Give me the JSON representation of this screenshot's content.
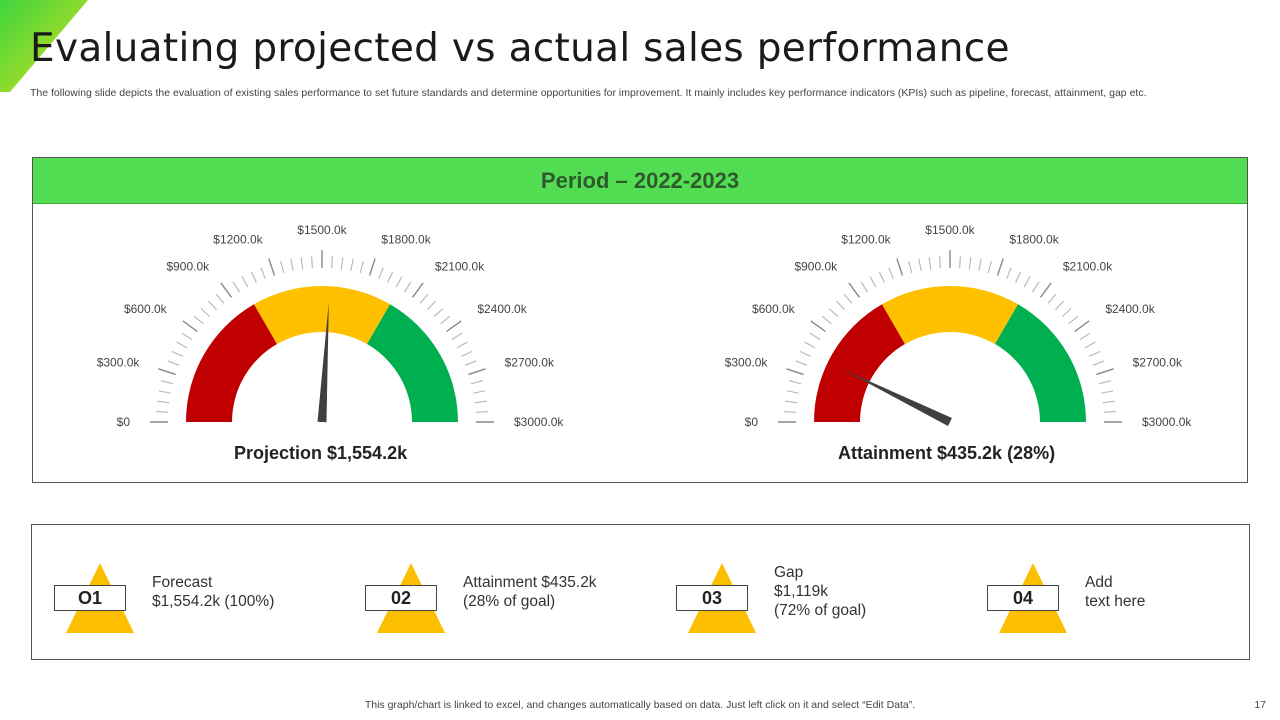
{
  "slide": {
    "title": "Evaluating projected vs actual sales performance",
    "subtitle": "The following slide depicts the evaluation of existing sales performance to set future standards and determine opportunities for improvement. It mainly includes key performance indicators (KPIs)  such as pipeline, forecast, attainment, gap etc.",
    "footer": "This graph/chart is linked to excel,  and changes automatically based on data. Just left click on it and select “Edit Data”.",
    "page_number": "17",
    "colors": {
      "header_green": "#53dd53",
      "red": "#c00000",
      "yellow": "#ffc000",
      "green": "#00b050",
      "needle": "#404040",
      "triangle": "#fcbf00"
    }
  },
  "panel": {
    "header": "Period – 2022-2023"
  },
  "chart_data": [
    {
      "type": "gauge",
      "title": "Projection $1,554.2k",
      "tick_labels": [
        "$0",
        "$300.0k",
        "$600.0k",
        "$900.0k",
        "$1200.0k",
        "$1500.0k",
        "$1800.0k",
        "$2100.0k",
        "$2400.0k",
        "$2700.0k",
        "$3000.0k"
      ],
      "range": [
        0,
        3000
      ],
      "bands": [
        {
          "from": 0,
          "to": 1000,
          "color": "#c00000"
        },
        {
          "from": 1000,
          "to": 2000,
          "color": "#ffc000"
        },
        {
          "from": 2000,
          "to": 3000,
          "color": "#00b050"
        }
      ],
      "value": 1554.2
    },
    {
      "type": "gauge",
      "title": "Attainment $435.2k (28%)",
      "tick_labels": [
        "$0",
        "$300.0k",
        "$600.0k",
        "$900.0k",
        "$1200.0k",
        "$1500.0k",
        "$1800.0k",
        "$2100.0k",
        "$2400.0k",
        "$2700.0k",
        "$3000.0k"
      ],
      "range": [
        0,
        3000
      ],
      "bands": [
        {
          "from": 0,
          "to": 1000,
          "color": "#c00000"
        },
        {
          "from": 1000,
          "to": 2000,
          "color": "#ffc000"
        },
        {
          "from": 2000,
          "to": 3000,
          "color": "#00b050"
        }
      ],
      "value": 435.2
    }
  ],
  "kpis": [
    {
      "number": "O1",
      "text": "Forecast\n$1,554.2k (100%)"
    },
    {
      "number": "02",
      "text": "Attainment $435.2k\n (28% of goal)"
    },
    {
      "number": "03",
      "text": "Gap\n$1,119k\n(72% of goal)"
    },
    {
      "number": "04",
      "text": "Add\ntext here"
    }
  ]
}
